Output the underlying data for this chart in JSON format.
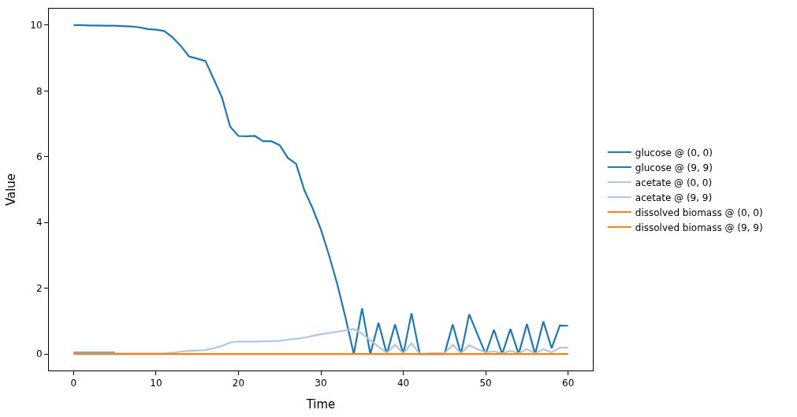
{
  "chart_data": {
    "type": "line",
    "xlabel": "Time",
    "ylabel": "Value",
    "x": [
      0,
      1,
      2,
      3,
      4,
      5,
      6,
      7,
      8,
      9,
      10,
      11,
      12,
      13,
      14,
      15,
      16,
      17,
      18,
      19,
      20,
      21,
      22,
      23,
      24,
      25,
      26,
      27,
      28,
      29,
      30,
      31,
      32,
      33,
      34,
      35,
      36,
      37,
      38,
      39,
      40,
      41,
      42,
      43,
      44,
      45,
      46,
      47,
      48,
      49,
      50,
      51,
      52,
      53,
      54,
      55,
      56,
      57,
      58,
      59,
      60
    ],
    "series": [
      {
        "name": "glucose @ (0, 0)",
        "color": "#1f77b4",
        "values": [
          10.0,
          10.0,
          9.99,
          9.99,
          9.98,
          9.98,
          9.97,
          9.96,
          9.93,
          9.88,
          9.86,
          9.82,
          9.63,
          9.37,
          9.05,
          8.98,
          8.91,
          8.36,
          7.8,
          6.91,
          6.63,
          6.62,
          6.63,
          6.47,
          6.47,
          6.35,
          5.96,
          5.78,
          4.98,
          4.43,
          3.79,
          3.0,
          2.12,
          1.1,
          0.0,
          1.39,
          0.0,
          0.95,
          0.0,
          0.9,
          0.0,
          1.24,
          0.0,
          0.0,
          0.0,
          0.0,
          0.9,
          0.0,
          1.21,
          0.6,
          0.0,
          0.74,
          0.0,
          0.76,
          0.0,
          0.91,
          0.0,
          0.99,
          0.18,
          0.87,
          0.86
        ]
      },
      {
        "name": "glucose @ (9, 9)",
        "color": "#1f77b4",
        "values": [
          0.04,
          0.04,
          0.04,
          0.04,
          0.04,
          0.04,
          null,
          null,
          null,
          null,
          null,
          null,
          null,
          null,
          null,
          null,
          null,
          null,
          null,
          null,
          null,
          null,
          null,
          null,
          null,
          null,
          null,
          null,
          null,
          null,
          null,
          null,
          null,
          null,
          null,
          null,
          null,
          null,
          null,
          null,
          null,
          null,
          null,
          null,
          null,
          null,
          null,
          null,
          null,
          null,
          null,
          null,
          null,
          null,
          null,
          null,
          null,
          null,
          null,
          null,
          null
        ]
      },
      {
        "name": "acetate @ (0, 0)",
        "color": "#aec7e8",
        "values": [
          0.02,
          0.02,
          0.02,
          0.02,
          0.02,
          0.02,
          0.02,
          0.02,
          0.02,
          0.02,
          0.02,
          0.02,
          0.04,
          0.07,
          0.1,
          0.11,
          0.12,
          0.18,
          0.25,
          0.35,
          0.38,
          0.38,
          0.38,
          0.39,
          0.39,
          0.4,
          0.44,
          0.46,
          0.5,
          0.55,
          0.6,
          0.64,
          0.68,
          0.72,
          0.76,
          0.62,
          0.42,
          0.22,
          0.03,
          0.28,
          0.02,
          0.33,
          0.0,
          0.02,
          0.03,
          0.02,
          0.28,
          0.02,
          0.27,
          0.15,
          0.05,
          0.08,
          0.02,
          0.1,
          0.02,
          0.15,
          0.02,
          0.15,
          0.05,
          0.19,
          0.19
        ]
      },
      {
        "name": "acetate @ (9, 9)",
        "color": "#aec7e8",
        "values": [
          null,
          null,
          null,
          null,
          null,
          null,
          null,
          null,
          null,
          null,
          null,
          null,
          null,
          null,
          null,
          null,
          null,
          null,
          null,
          null,
          null,
          null,
          null,
          null,
          null,
          null,
          null,
          null,
          null,
          null,
          null,
          null,
          null,
          null,
          null,
          null,
          null,
          null,
          null,
          null,
          null,
          null,
          null,
          null,
          null,
          null,
          null,
          null,
          null,
          null,
          null,
          null,
          null,
          null,
          null,
          null,
          null,
          null,
          null,
          null,
          null
        ]
      },
      {
        "name": "dissolved biomass @ (0, 0)",
        "color": "#ff7f0e",
        "values": [
          null,
          null,
          null,
          null,
          null,
          null,
          null,
          null,
          null,
          null,
          null,
          null,
          null,
          null,
          null,
          null,
          null,
          null,
          null,
          null,
          null,
          null,
          null,
          null,
          null,
          null,
          null,
          null,
          null,
          null,
          null,
          null,
          null,
          null,
          null,
          null,
          null,
          null,
          null,
          null,
          null,
          null,
          null,
          null,
          null,
          null,
          null,
          null,
          null,
          null,
          null,
          null,
          null,
          null,
          null,
          null,
          null,
          null,
          null,
          null,
          null
        ]
      },
      {
        "name": "dissolved biomass @ (9, 9)",
        "color": "#ff7f0e",
        "values": [
          0,
          0,
          0,
          0,
          0,
          0,
          0,
          0,
          0,
          0,
          0,
          0,
          0,
          0,
          0,
          0,
          0,
          0,
          0,
          0,
          0,
          0,
          0,
          0,
          0,
          0,
          0,
          0,
          0,
          0,
          0,
          0,
          0,
          0,
          0,
          0,
          0,
          0,
          0,
          0,
          0,
          0,
          0,
          0,
          0,
          0,
          0,
          0,
          0,
          0,
          0,
          0,
          0,
          0,
          0,
          0,
          0,
          0,
          0,
          0,
          0
        ]
      }
    ],
    "xlim": [
      -3,
      63
    ],
    "ylim": [
      -0.5,
      10.5
    ],
    "xticks": [
      0,
      10,
      20,
      30,
      40,
      50,
      60
    ],
    "yticks": [
      0,
      2,
      4,
      6,
      8,
      10
    ],
    "legend": "right",
    "marker": "none",
    "line_style": "solid"
  }
}
